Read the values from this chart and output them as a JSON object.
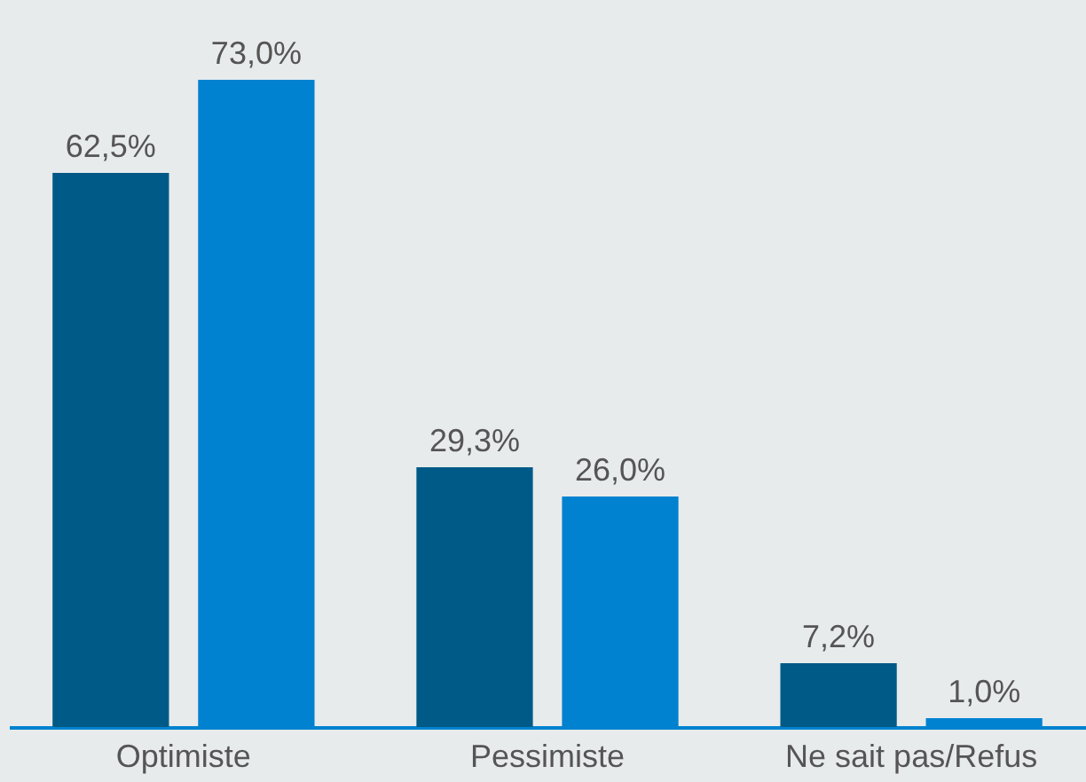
{
  "chart_data": {
    "type": "bar",
    "categories": [
      "Optimiste",
      "Pessimiste",
      "Ne sait pas/Refus"
    ],
    "series": [
      {
        "color": "#005a87",
        "values": [
          62.5,
          29.3,
          7.2
        ],
        "value_labels": [
          "62,5%",
          "29,3%",
          "7,2%"
        ]
      },
      {
        "color": "#0082d0",
        "values": [
          73.0,
          26.0,
          1.0
        ],
        "value_labels": [
          "73,0%",
          "26,0%",
          "1,0%"
        ]
      }
    ],
    "grid": false,
    "legend": false,
    "tick_labels": "x"
  }
}
